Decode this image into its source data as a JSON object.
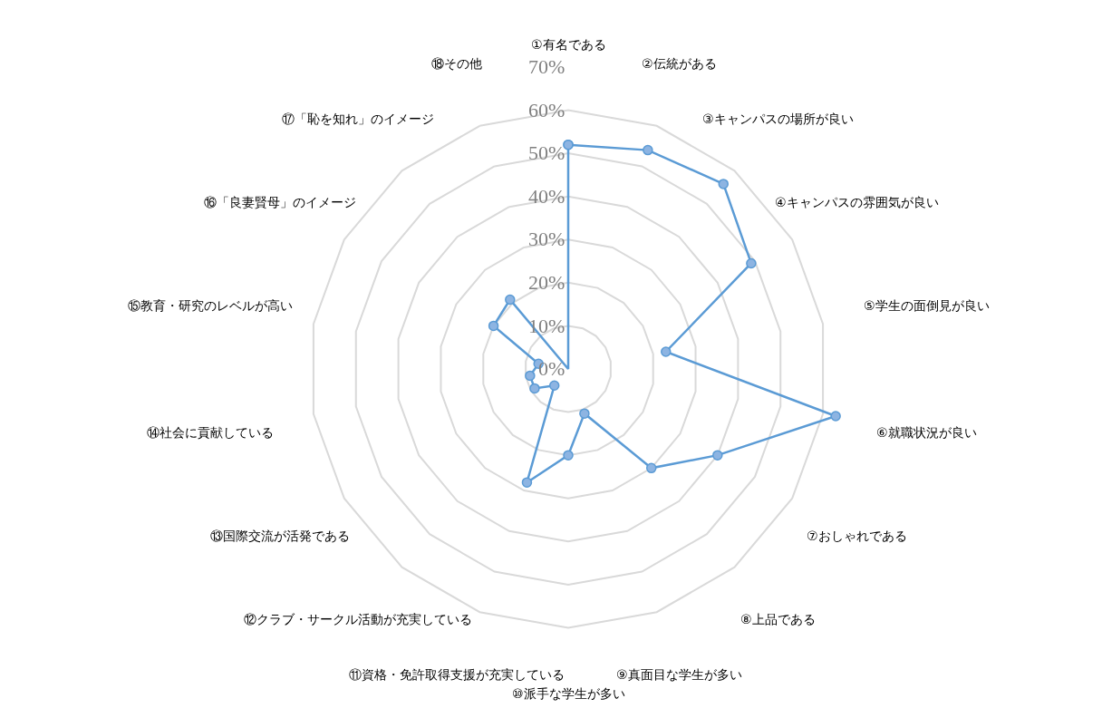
{
  "chart_data": {
    "type": "radar",
    "categories": [
      "①有名である",
      "②伝統がある",
      "③キャンパスの場所が良い",
      "④キャンパスの雰囲気が良い",
      "⑤学生の面倒見が良い",
      "⑥就職状況が良い",
      "⑦おしゃれである",
      "⑧上品である",
      "⑨真面目な学生が多い",
      "⑩派手な学生が多い",
      "⑪資格・免許取得支援が充実している",
      "⑫クラブ・サークル活動が充実している",
      "⑬国際交流が活発である",
      "⑭社会に貢献している",
      "⑮教育・研究のレベルが高い",
      "⑯「良妻賢母」のイメージ",
      "⑰「恥を知れ」のイメージ",
      "⑱その他"
    ],
    "series": [
      {
        "color": "#5b9bd5",
        "values": [
          52,
          54,
          56,
          49,
          23,
          63,
          40,
          30,
          11,
          20,
          28,
          5,
          9,
          9,
          7,
          20,
          21,
          0
        ]
      }
    ],
    "ylim": [
      0,
      70
    ],
    "yticks": [
      {
        "value": 0,
        "label": "0%"
      },
      {
        "value": 10,
        "label": "10%"
      },
      {
        "value": 20,
        "label": "20%"
      },
      {
        "value": 30,
        "label": "30%"
      },
      {
        "value": 40,
        "label": "40%"
      },
      {
        "value": 50,
        "label": "50%"
      },
      {
        "value": 60,
        "label": "60%"
      },
      {
        "value": 70,
        "label": "70%"
      }
    ],
    "grid": true,
    "marker": "circle",
    "line_style": "solid"
  }
}
